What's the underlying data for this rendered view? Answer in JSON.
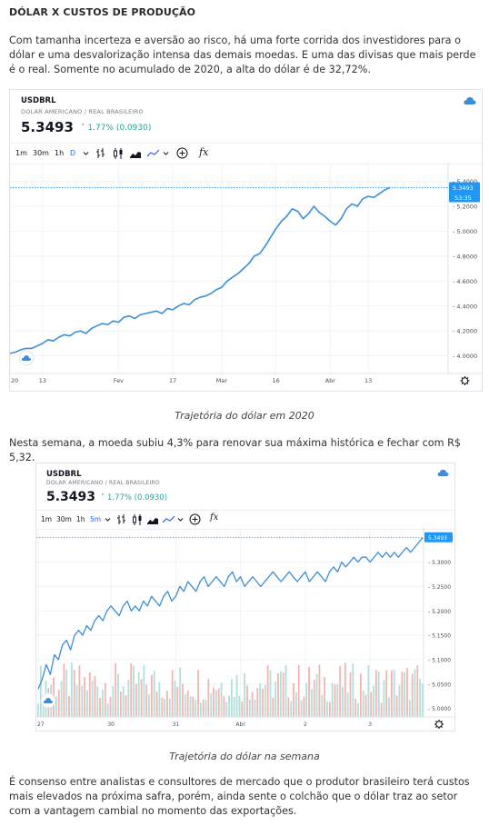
{
  "article": {
    "heading": "DÓLAR X CUSTOS DE PRODUÇÃO",
    "para1": "Com tamanha incerteza e aversão ao risco, há uma forte corrida dos investidores para o dólar e uma desvalorização intensa das demais moedas. E uma das divisas que mais perde é o real. Somente no acumulado de 2020, a alta do dólar é de 32,72%.",
    "caption1": "Trajetória do dólar em 2020",
    "para2": "Nesta semana, a moeda subiu 4,3% para renovar sua máxima histórica e fechar com R$ 5,32.",
    "caption2": "Trajetória do dólar na semana",
    "para3": "É consenso entre analistas e consultores de mercado que o produtor brasileiro terá custos mais elevados na próxima safra, porém, ainda sente o colchão que o dólar traz ao setor com a vantagem cambial no momento das exportações."
  },
  "chart1": {
    "symbol": "USDBRL",
    "subtitle": "DOLAR AMERICANO / REAL BRASILEIRO",
    "price": "5.3493",
    "change": "1.77% (0.0930)",
    "timeframes": [
      "1m",
      "30m",
      "1h",
      "D"
    ],
    "active_timeframe": "D",
    "fx_label": "fx",
    "price_tag": "5.3493",
    "countdown": "53:35",
    "colors": {
      "line": "#3c8fd6",
      "price_tag": "#2196f3",
      "change": "#26a69a"
    },
    "chart_data": {
      "type": "line",
      "y_ticks": [
        "5.4000",
        "5.2000",
        "5.0000",
        "4.8000",
        "4.6000",
        "4.4000",
        "4.2000",
        "4.0000"
      ],
      "y_tick_values": [
        5.4,
        5.2,
        5.0,
        4.8,
        4.6,
        4.4,
        4.2,
        4.0
      ],
      "ylim": [
        3.91,
        5.55
      ],
      "x_ticks": [
        "20",
        "13",
        "Fev",
        "17",
        "Mar",
        "16",
        "Abr",
        "13"
      ],
      "x_tick_index": [
        0,
        6,
        20,
        30,
        39,
        49,
        59,
        66
      ],
      "x_count": 71,
      "values": [
        4.02,
        4.03,
        4.05,
        4.06,
        4.06,
        4.08,
        4.1,
        4.13,
        4.12,
        4.15,
        4.17,
        4.16,
        4.19,
        4.2,
        4.18,
        4.22,
        4.24,
        4.26,
        4.25,
        4.28,
        4.27,
        4.31,
        4.32,
        4.3,
        4.33,
        4.34,
        4.35,
        4.36,
        4.34,
        4.38,
        4.37,
        4.4,
        4.42,
        4.41,
        4.45,
        4.47,
        4.48,
        4.5,
        4.53,
        4.55,
        4.6,
        4.63,
        4.66,
        4.7,
        4.74,
        4.8,
        4.82,
        4.88,
        4.95,
        5.02,
        5.08,
        5.12,
        5.18,
        5.16,
        5.1,
        5.14,
        5.2,
        5.15,
        5.12,
        5.08,
        5.05,
        5.1,
        5.18,
        5.22,
        5.2,
        5.26,
        5.28,
        5.27,
        5.3,
        5.33,
        5.35
      ]
    }
  },
  "chart2": {
    "symbol": "USDBRL",
    "subtitle": "DOLAR AMERICANO / REAL BRASILEIRO",
    "price": "5.3493",
    "change": "1.77% (0.0930)",
    "timeframes": [
      "1m",
      "30m",
      "1h",
      "5m"
    ],
    "active_timeframe": "5m",
    "fx_label": "fx",
    "price_tag": "5.3493",
    "colors": {
      "line": "#3c8fd6",
      "price_tag": "#2196f3",
      "vol_up": "#b2dfdb",
      "vol_down": "#f5b4ae"
    },
    "chart_data": {
      "type": "line",
      "y_ticks": [
        "5.3000",
        "5.2500",
        "5.2000",
        "5.1500",
        "5.1000",
        "5.0500",
        "5.0000"
      ],
      "y_tick_values": [
        5.3,
        5.25,
        5.2,
        5.15,
        5.1,
        5.05,
        5.0
      ],
      "ylim": [
        4.99,
        5.37
      ],
      "x_ticks": [
        "27",
        "30",
        "31",
        "Abr",
        "2",
        "3"
      ],
      "x_tick_index": [
        0,
        18,
        34,
        50,
        66,
        82
      ],
      "x_count": 96,
      "values": [
        5.04,
        5.06,
        5.09,
        5.07,
        5.11,
        5.1,
        5.13,
        5.14,
        5.12,
        5.15,
        5.16,
        5.15,
        5.17,
        5.16,
        5.18,
        5.19,
        5.18,
        5.2,
        5.21,
        5.2,
        5.19,
        5.21,
        5.22,
        5.2,
        5.21,
        5.2,
        5.22,
        5.21,
        5.23,
        5.22,
        5.21,
        5.23,
        5.24,
        5.22,
        5.23,
        5.25,
        5.24,
        5.26,
        5.25,
        5.24,
        5.26,
        5.27,
        5.25,
        5.26,
        5.27,
        5.26,
        5.25,
        5.27,
        5.28,
        5.26,
        5.27,
        5.25,
        5.26,
        5.27,
        5.26,
        5.25,
        5.26,
        5.27,
        5.28,
        5.27,
        5.26,
        5.27,
        5.28,
        5.27,
        5.26,
        5.27,
        5.28,
        5.26,
        5.27,
        5.28,
        5.27,
        5.26,
        5.28,
        5.29,
        5.28,
        5.3,
        5.29,
        5.3,
        5.31,
        5.3,
        5.31,
        5.31,
        5.3,
        5.31,
        5.32,
        5.31,
        5.32,
        5.31,
        5.32,
        5.31,
        5.32,
        5.33,
        5.32,
        5.33,
        5.34,
        5.35
      ]
    }
  }
}
